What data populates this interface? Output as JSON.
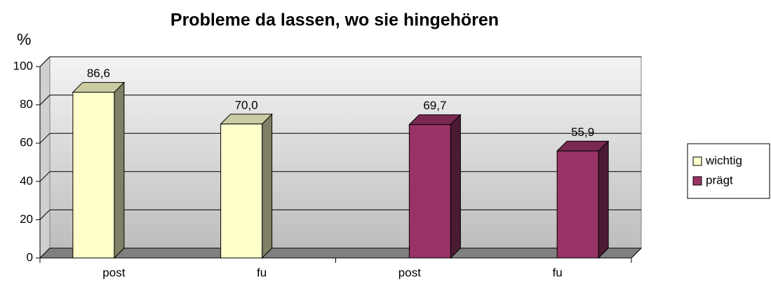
{
  "chart_data": {
    "type": "bar3d",
    "title": "Probleme da lassen, wo sie hingehören",
    "y_label": "%",
    "categories": [
      "post",
      "fu",
      "post",
      "fu"
    ],
    "series": [
      {
        "name": "wichtig",
        "color": "#ffffcc",
        "values": [
          86.6,
          70.0,
          null,
          null
        ],
        "value_labels": [
          "86,6",
          "70,0",
          null,
          null
        ]
      },
      {
        "name": "prägt",
        "color": "#993366",
        "values": [
          null,
          null,
          69.7,
          55.9
        ],
        "value_labels": [
          null,
          null,
          "69,7",
          "55,9"
        ]
      }
    ],
    "ylim": [
      0,
      100
    ],
    "yticks": [
      0,
      20,
      40,
      60,
      80,
      100
    ],
    "grid": true,
    "legend": "right"
  }
}
